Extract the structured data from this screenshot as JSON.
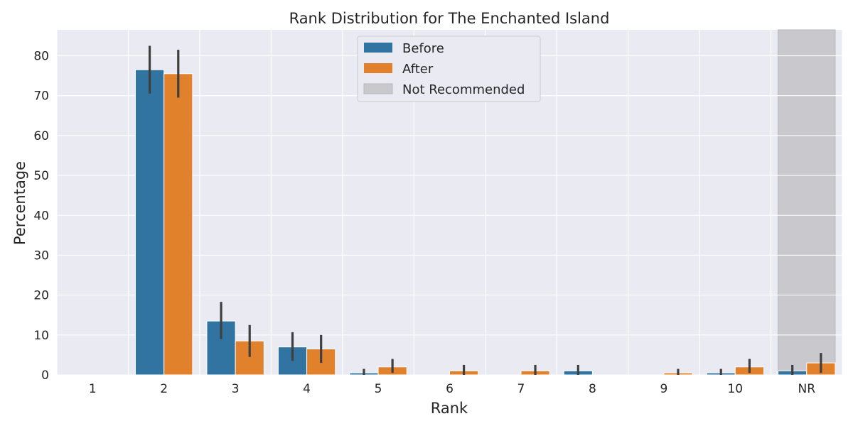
{
  "chart_data": {
    "type": "bar",
    "title": "Rank Distribution for The Enchanted Island",
    "xlabel": "Rank",
    "ylabel": "Percentage",
    "categories": [
      "1",
      "2",
      "3",
      "4",
      "5",
      "6",
      "7",
      "8",
      "9",
      "10",
      "NR"
    ],
    "ylim": [
      0,
      86.5
    ],
    "yticks": [
      0,
      10,
      20,
      30,
      40,
      50,
      60,
      70,
      80
    ],
    "grid": true,
    "legend_position": "top-center",
    "series": [
      {
        "name": "Before",
        "color": "#3274a1",
        "values": [
          0,
          76.5,
          13.5,
          7,
          0.5,
          0,
          0,
          1,
          0,
          0.5,
          1
        ],
        "error_low": [
          0,
          70.5,
          9,
          3.5,
          0,
          0,
          0,
          0,
          0,
          0,
          0
        ],
        "error_high": [
          0,
          82.5,
          18.3,
          10.7,
          1.5,
          0,
          0,
          2.5,
          0,
          1.5,
          2.5
        ]
      },
      {
        "name": "After",
        "color": "#e1812c",
        "values": [
          0,
          75.5,
          8.5,
          6.5,
          2,
          1,
          1,
          0,
          0.5,
          2,
          3
        ],
        "error_low": [
          0,
          69.5,
          4.5,
          3,
          0.5,
          0,
          0,
          0,
          0,
          0.5,
          0.5
        ],
        "error_high": [
          0,
          81.5,
          12.5,
          10,
          4,
          2.5,
          2.5,
          0,
          1.5,
          4,
          5.5
        ]
      }
    ],
    "highlight": {
      "category": "NR",
      "label": "Not Recommended",
      "color": "#c9c8cd"
    }
  }
}
